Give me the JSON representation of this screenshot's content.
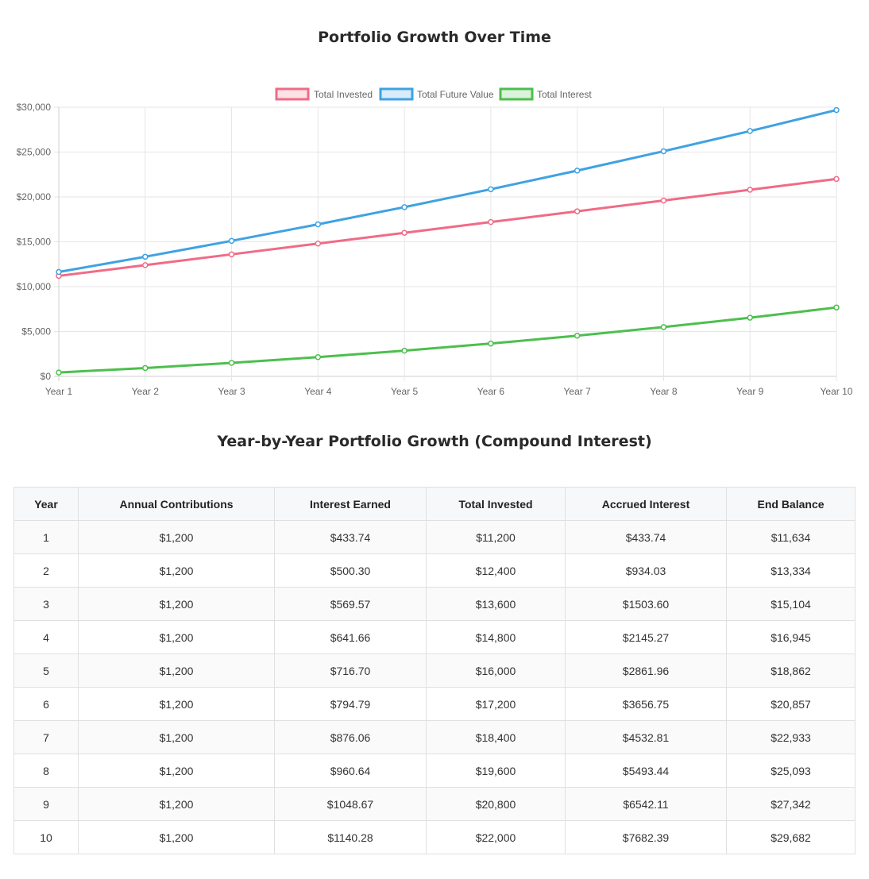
{
  "chart_title": "Portfolio Growth Over Time",
  "table_title": "Year-by-Year Portfolio Growth (Compound Interest)",
  "chart_data": {
    "type": "line",
    "title": "Portfolio Growth Over Time",
    "categories": [
      "Year 1",
      "Year 2",
      "Year 3",
      "Year 4",
      "Year 5",
      "Year 6",
      "Year 7",
      "Year 8",
      "Year 9",
      "Year 10"
    ],
    "ylim": [
      0,
      30000
    ],
    "y_ticks": [
      "$0",
      "$5,000",
      "$10,000",
      "$15,000",
      "$20,000",
      "$25,000",
      "$30,000"
    ],
    "grid": true,
    "legend_position": "top",
    "series": [
      {
        "name": "Total Invested",
        "color": "#f06b86",
        "values": [
          11200,
          12400,
          13600,
          14800,
          16000,
          17200,
          18400,
          19600,
          20800,
          22000
        ]
      },
      {
        "name": "Total Future Value",
        "color": "#3fa2e3",
        "values": [
          11634,
          13334,
          15104,
          16945,
          18862,
          20857,
          22933,
          25093,
          27342,
          29682
        ]
      },
      {
        "name": "Total Interest",
        "color": "#4dbf4d",
        "values": [
          433.74,
          934.03,
          1503.6,
          2145.27,
          2861.96,
          3656.75,
          4532.81,
          5493.44,
          6542.11,
          7682.39
        ]
      }
    ]
  },
  "table": {
    "headers": [
      "Year",
      "Annual Contributions",
      "Interest Earned",
      "Total Invested",
      "Accrued Interest",
      "End Balance"
    ],
    "rows": [
      [
        "1",
        "$1,200",
        "$433.74",
        "$11,200",
        "$433.74",
        "$11,634"
      ],
      [
        "2",
        "$1,200",
        "$500.30",
        "$12,400",
        "$934.03",
        "$13,334"
      ],
      [
        "3",
        "$1,200",
        "$569.57",
        "$13,600",
        "$1503.60",
        "$15,104"
      ],
      [
        "4",
        "$1,200",
        "$641.66",
        "$14,800",
        "$2145.27",
        "$16,945"
      ],
      [
        "5",
        "$1,200",
        "$716.70",
        "$16,000",
        "$2861.96",
        "$18,862"
      ],
      [
        "6",
        "$1,200",
        "$794.79",
        "$17,200",
        "$3656.75",
        "$20,857"
      ],
      [
        "7",
        "$1,200",
        "$876.06",
        "$18,400",
        "$4532.81",
        "$22,933"
      ],
      [
        "8",
        "$1,200",
        "$960.64",
        "$19,600",
        "$5493.44",
        "$25,093"
      ],
      [
        "9",
        "$1,200",
        "$1048.67",
        "$20,800",
        "$6542.11",
        "$27,342"
      ],
      [
        "10",
        "$1,200",
        "$1140.28",
        "$22,000",
        "$7682.39",
        "$29,682"
      ]
    ]
  }
}
